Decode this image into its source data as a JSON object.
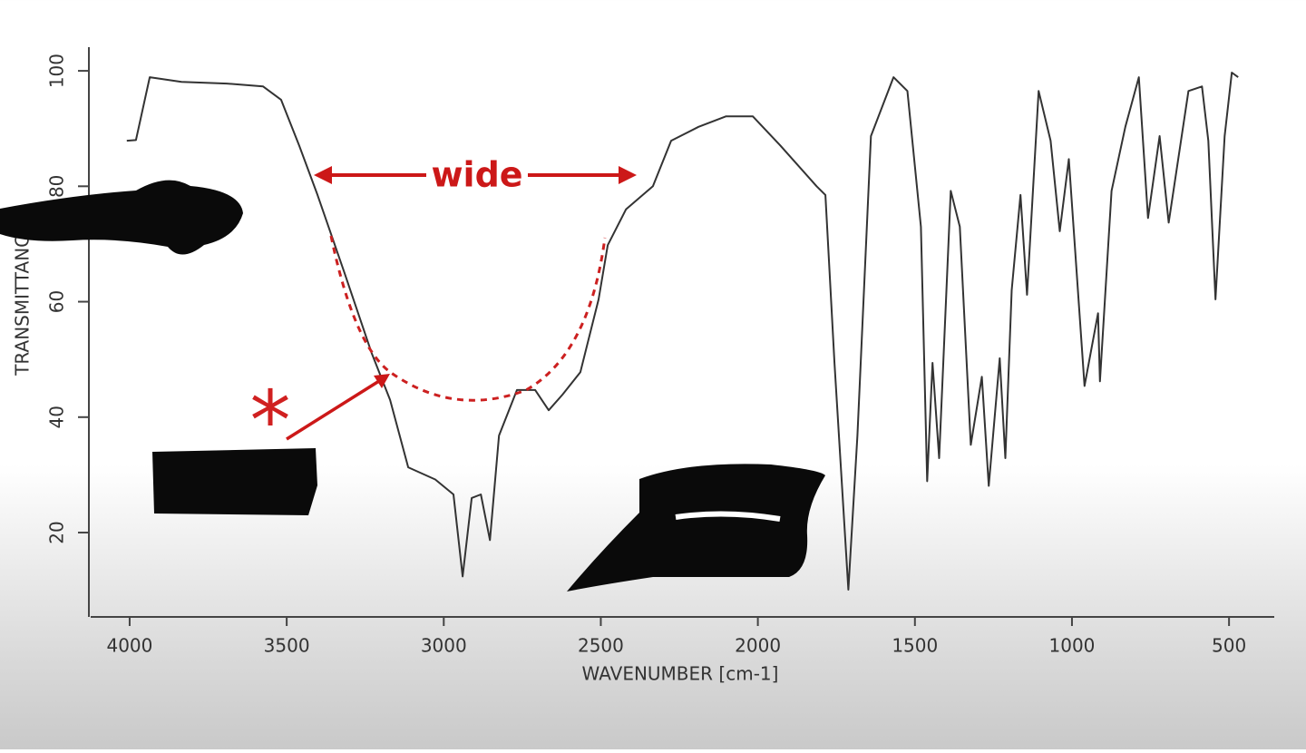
{
  "chart_data": {
    "type": "line",
    "xlabel": "WAVENUMBER [cm-1]",
    "ylabel": "TRANSMITTANCE",
    "annotations": [
      "wide",
      "*"
    ],
    "xlim": [
      4124,
      356
    ],
    "ylim": [
      5.7,
      104.1
    ],
    "xticks": [
      4000,
      3500,
      3000,
      2500,
      2000,
      1500,
      1000,
      500
    ],
    "yticks": [
      20,
      40,
      60,
      80,
      100
    ],
    "series": [
      {
        "color": "#333333",
        "x": [
          4009,
          3980,
          3936,
          3835,
          3691,
          3575,
          3518,
          3460,
          3402,
          3316,
          3229,
          3171,
          3113,
          3027,
          2969,
          2940,
          2911,
          2882,
          2853,
          2824,
          2767,
          2709,
          2666,
          2622,
          2565,
          2507,
          2478,
          2420,
          2334,
          2276,
          2189,
          2102,
          2016,
          1929,
          1813,
          1785,
          1756,
          1712,
          1683,
          1640,
          1568,
          1524,
          1481,
          1461,
          1444,
          1423,
          1386,
          1357,
          1322,
          1287,
          1265,
          1230,
          1212,
          1192,
          1164,
          1143,
          1106,
          1068,
          1039,
          1010,
          960,
          917,
          911,
          874,
          830,
          787,
          758,
          721,
          692,
          629,
          586,
          566,
          543,
          514,
          491,
          471
        ],
        "values": [
          87.9,
          88,
          98.9,
          98.1,
          97.8,
          97.3,
          95,
          87,
          78.5,
          65,
          51,
          43,
          31.3,
          29.2,
          26.6,
          12.4,
          26,
          26.6,
          18.7,
          36.8,
          44.7,
          44.7,
          41.2,
          43.9,
          47.8,
          60.4,
          69.8,
          76,
          80,
          87.9,
          90.3,
          92.1,
          92.1,
          87.1,
          80,
          78.5,
          49.4,
          10.1,
          36.8,
          88.7,
          98.9,
          96.5,
          73,
          28.9,
          49.4,
          32.9,
          79.2,
          73,
          35.2,
          47,
          28.1,
          50.2,
          32.9,
          62,
          78.5,
          61.2,
          96.5,
          87.9,
          72.2,
          84.7,
          45.4,
          58,
          46.2,
          79.2,
          90.3,
          98.9,
          74.5,
          88.7,
          73.7,
          96.5,
          97.3,
          87.9,
          60.4,
          88.7,
          99.7,
          98.9
        ]
      }
    ]
  }
}
